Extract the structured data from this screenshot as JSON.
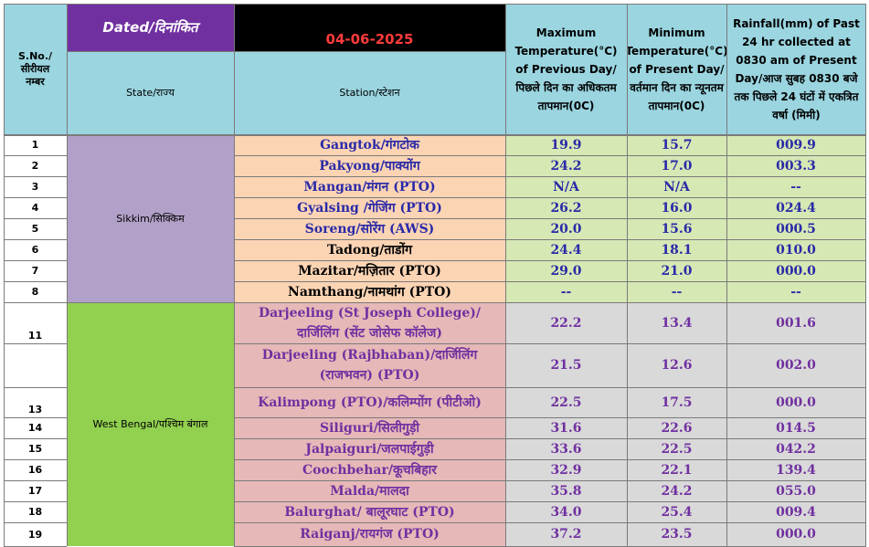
{
  "header": {
    "sno": "S.No./\nसीरीयल\nनम्बर",
    "dated": "Dated/दिनांकित",
    "date": "04-06-2025",
    "state": "State/राज्य",
    "station": "Station/स्टेशन",
    "max_temp": "Maximum Temperature(°C) of Previous Day/पिछले दिन का अधिकतम तापमान(0C)",
    "min_temp": "Minimum Temperature(°C) of Present Day/वर्तमान दिन का न्यूनतम तापमान(0C)",
    "rainfall": "Rainfall(mm) of Past 24 hr collected at 0830 am of Present Day/आज सुबह 0830 बजे तक पिछले 24 घंटों में एकत्रित वर्षा (मिमी)"
  },
  "states": [
    {
      "name": "Sikkim/सिक्किम"
    },
    {
      "name": "West Bengal/पश्चिम बंगाल"
    }
  ],
  "rows": [
    {
      "sno": "1",
      "station": "Gangtok/गंगटोक",
      "max": "19.9",
      "min": "15.7",
      "rain": "009.9"
    },
    {
      "sno": "2",
      "station": "Pakyong/पाक्योंग",
      "max": "24.2",
      "min": "17.0",
      "rain": "003.3"
    },
    {
      "sno": "3",
      "station": "Mangan/मंगन (PTO)",
      "max": "N/A",
      "min": "N/A",
      "rain": "--"
    },
    {
      "sno": "4",
      "station": "Gyalsing /गेजिंग (PTO)",
      "max": "26.2",
      "min": "16.0",
      "rain": "024.4"
    },
    {
      "sno": "5",
      "station": "Soreng/सोरेंग (AWS)",
      "max": "20.0",
      "min": "15.6",
      "rain": "000.5"
    },
    {
      "sno": "6",
      "station": "Tadong/ताडोंग",
      "max": "24.4",
      "min": "18.1",
      "rain": "010.0"
    },
    {
      "sno": "7",
      "station": "Mazitar/मज़ितार (PTO)",
      "max": "29.0",
      "min": "21.0",
      "rain": "000.0"
    },
    {
      "sno": "8",
      "station": "Namthang/नामथांग (PTO)",
      "max": "--",
      "min": "--",
      "rain": "--"
    },
    {
      "sno": "11",
      "station": "Darjeeling (St Joseph College)/दार्जिलिंग (सेंट जोसेफ कॉलेज)",
      "max": "22.2",
      "min": "13.4",
      "rain": "001.6"
    },
    {
      "sno": "",
      "station": "Darjeeling (Rajbhaban)/दार्जिलिंग (राजभवन) (PTO)",
      "max": "21.5",
      "min": "12.6",
      "rain": "002.0"
    },
    {
      "sno": "13",
      "station": "Kalimpong (PTO)/कलिम्पोंग (पीटीओ)",
      "max": "22.5",
      "min": "17.5",
      "rain": "000.0"
    },
    {
      "sno": "14",
      "station": "Siliguri/सिलीगुड़ी",
      "max": "31.6",
      "min": "22.6",
      "rain": "014.5"
    },
    {
      "sno": "15",
      "station": "Jalpaiguri/जलपाईगुड़ी",
      "max": "33.6",
      "min": "22.5",
      "rain": "042.2"
    },
    {
      "sno": "16",
      "station": "Coochbehar/कूचबिहार",
      "max": "32.9",
      "min": "22.1",
      "rain": "139.4"
    },
    {
      "sno": "17",
      "station": "Malda/मालदा",
      "max": "35.8",
      "min": "24.2",
      "rain": "055.0"
    },
    {
      "sno": "18",
      "station": "Balurghat/ बालूरघाट (PTO)",
      "max": "34.0",
      "min": "25.4",
      "rain": "009.4"
    },
    {
      "sno": "19",
      "station": "Raiganj/रायगंज (PTO)",
      "max": "37.2",
      "min": "23.5",
      "rain": "000.0"
    }
  ]
}
